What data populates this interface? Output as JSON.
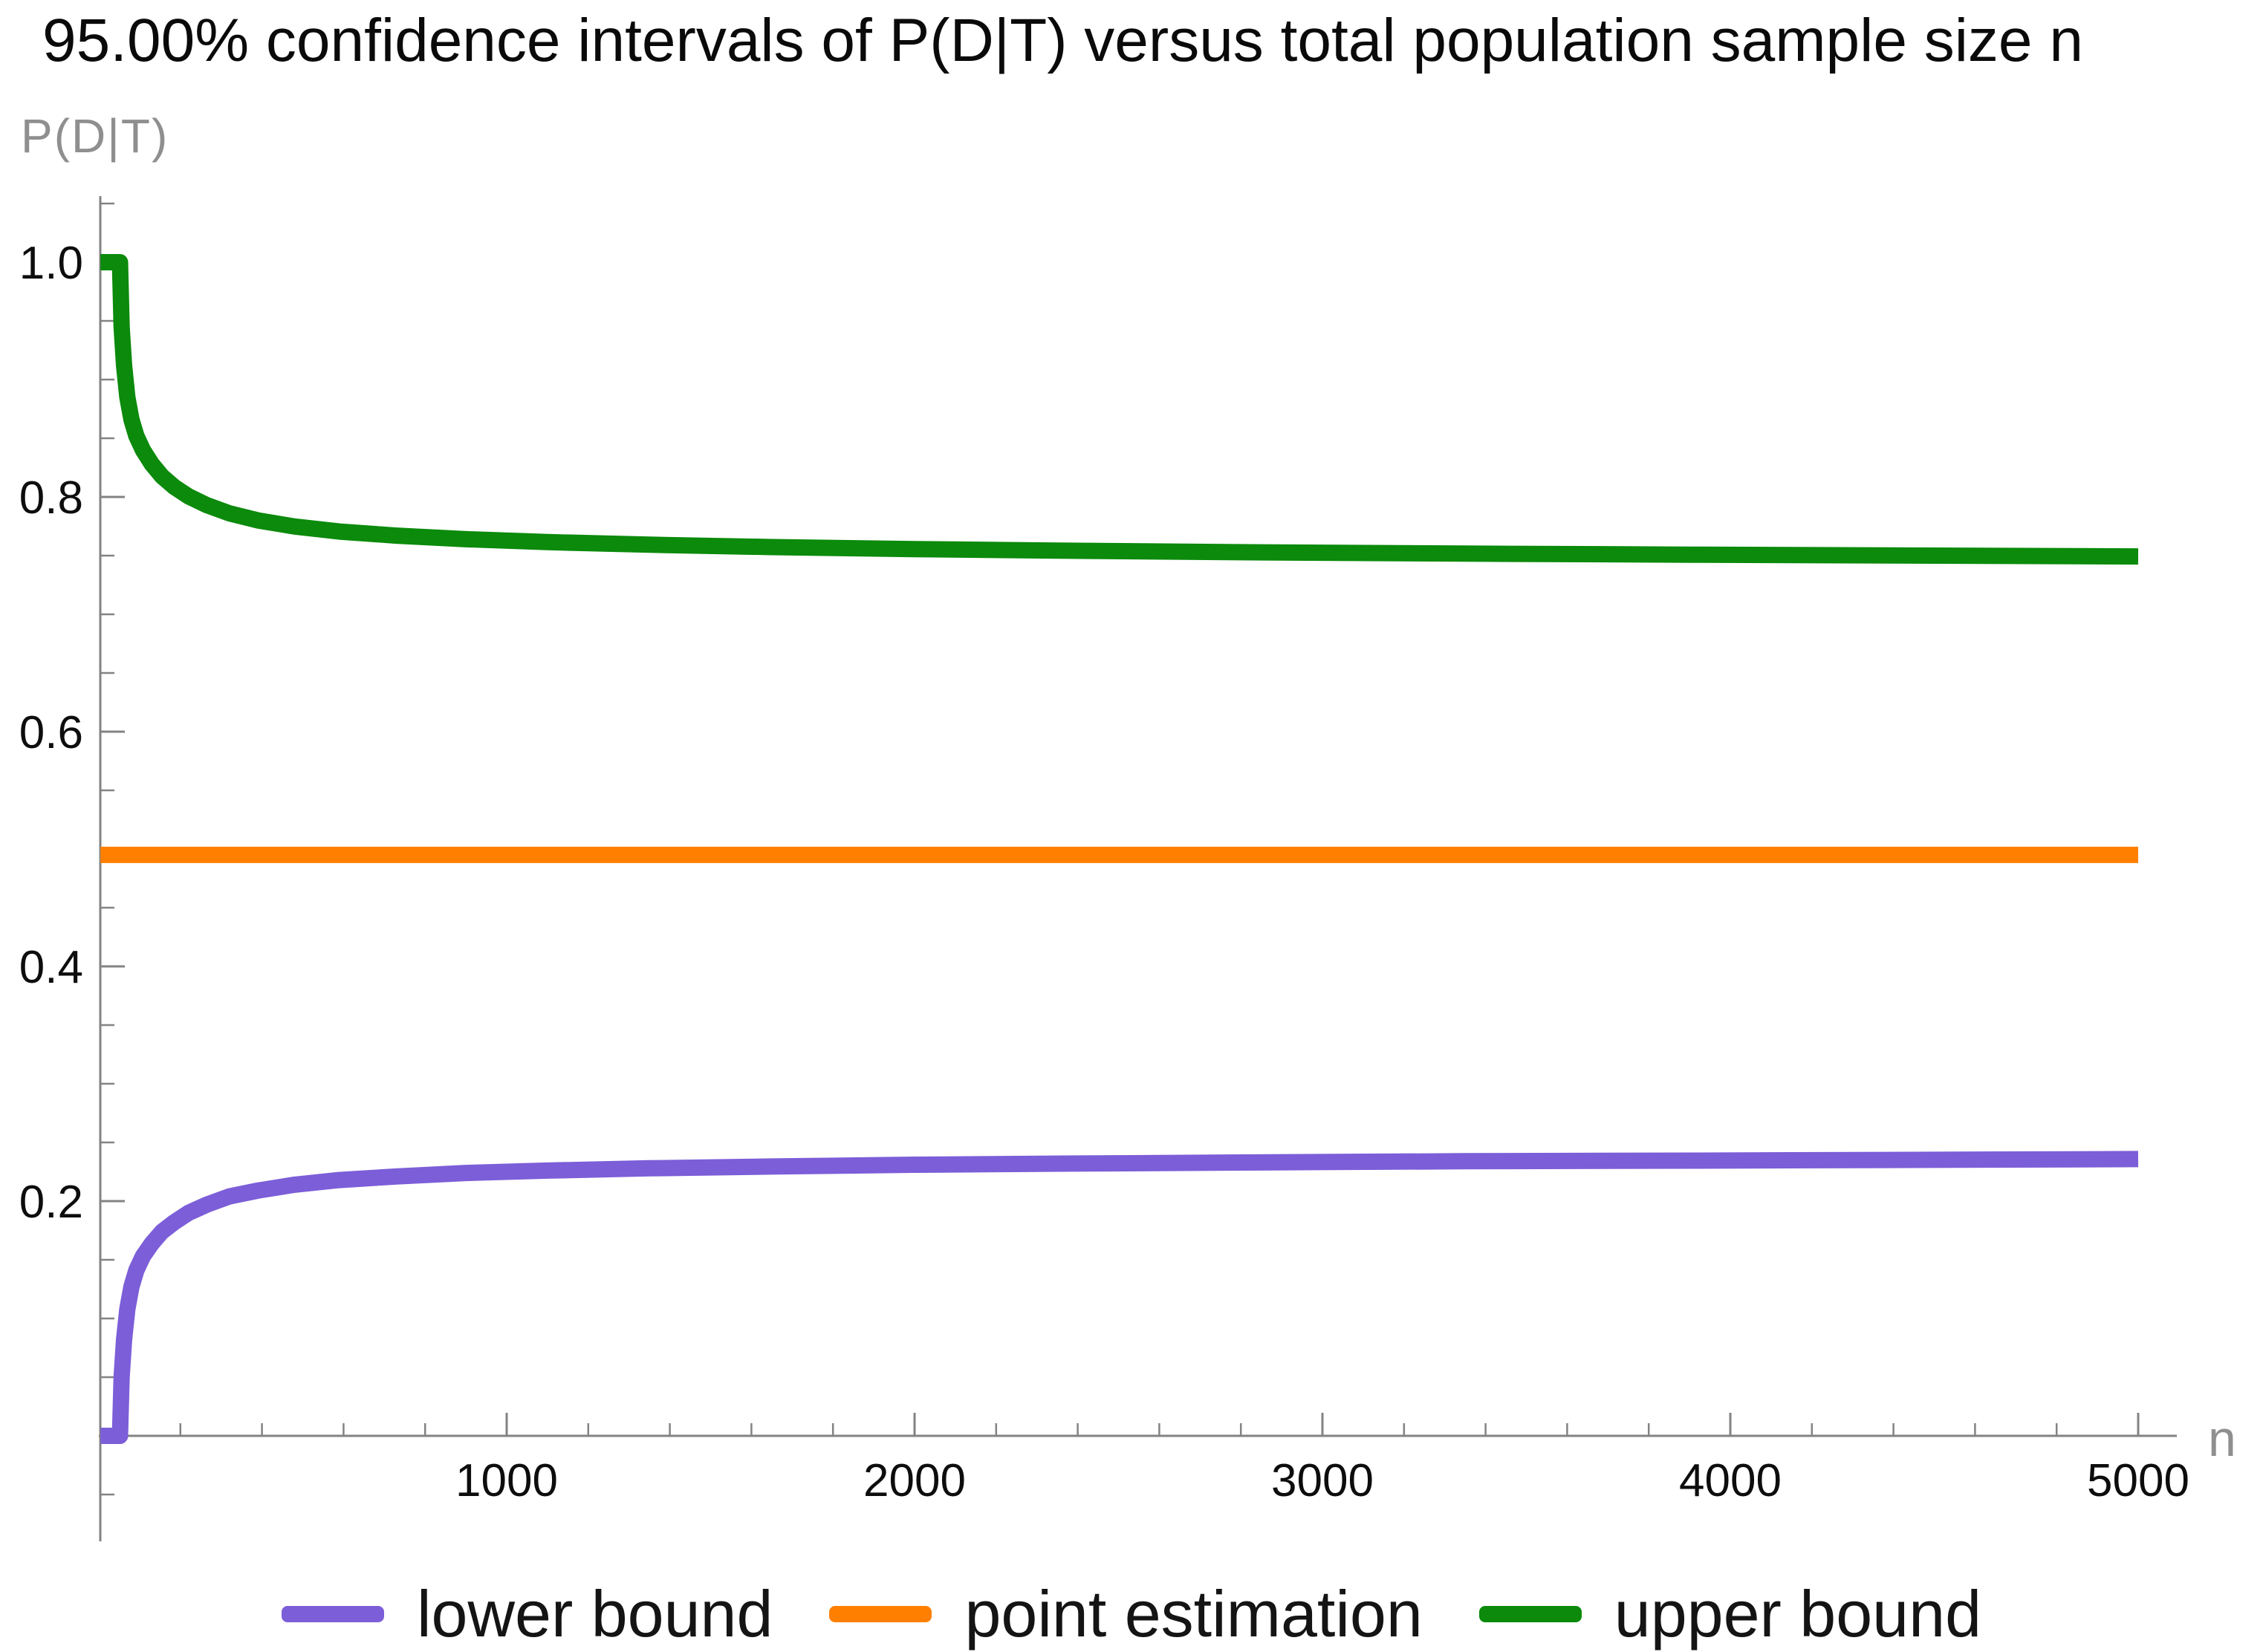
{
  "title": "95.00% confidence intervals of P(D|T) versus total population sample size n",
  "chart_data": {
    "type": "line",
    "title": "95.00% confidence intervals of P(D|T) versus total population sample size n",
    "xlabel": "n",
    "ylabel": "P(D|T)",
    "xlim": [
      0,
      5170
    ],
    "ylim": [
      -0.09,
      1.06
    ],
    "grid": false,
    "legend_position": "bottom",
    "x_axis": {
      "ticks": [
        {
          "v": 1000,
          "t": "1000"
        },
        {
          "v": 2000,
          "t": "2000"
        },
        {
          "v": 3000,
          "t": "3000"
        },
        {
          "v": 4000,
          "t": "4000"
        },
        {
          "v": 5000,
          "t": "5000"
        }
      ],
      "minor_step": 200,
      "minor_min": 200,
      "minor_max": 5000
    },
    "y_axis": {
      "ticks": [
        {
          "v": 0.2,
          "t": "0.2"
        },
        {
          "v": 0.4,
          "t": "0.4"
        },
        {
          "v": 0.6,
          "t": "0.6"
        },
        {
          "v": 0.8,
          "t": "0.8"
        },
        {
          "v": 1.0,
          "t": "1.0"
        }
      ],
      "minor_step": 0.05,
      "minor_min": -0.05,
      "minor_max": 1.05
    },
    "series": [
      {
        "name": "lower bound",
        "color": "#7c5ed8",
        "points": [
          [
            4,
            0
          ],
          [
            52,
            0
          ],
          [
            56,
            0.05
          ],
          [
            62,
            0.082
          ],
          [
            70,
            0.108
          ],
          [
            80,
            0.127
          ],
          [
            92,
            0.141
          ],
          [
            108,
            0.153
          ],
          [
            130,
            0.164
          ],
          [
            155,
            0.174
          ],
          [
            185,
            0.182
          ],
          [
            220,
            0.19
          ],
          [
            265,
            0.197
          ],
          [
            320,
            0.204
          ],
          [
            390,
            0.209
          ],
          [
            480,
            0.214
          ],
          [
            590,
            0.218
          ],
          [
            730,
            0.221
          ],
          [
            900,
            0.224
          ],
          [
            1100,
            0.226
          ],
          [
            1350,
            0.228
          ],
          [
            1650,
            0.2295
          ],
          [
            2000,
            0.231
          ],
          [
            2400,
            0.232
          ],
          [
            2850,
            0.233
          ],
          [
            3350,
            0.234
          ],
          [
            3900,
            0.2345
          ],
          [
            4500,
            0.2352
          ],
          [
            5000,
            0.2358
          ]
        ]
      },
      {
        "name": "point estimation",
        "color": "#ff8000",
        "points": [
          [
            4,
            0.495
          ],
          [
            5000,
            0.495
          ]
        ]
      },
      {
        "name": "upper bound",
        "color": "#0b8a0b",
        "points": [
          [
            4,
            1.0
          ],
          [
            52,
            1.0
          ],
          [
            56,
            0.945
          ],
          [
            62,
            0.912
          ],
          [
            70,
            0.885
          ],
          [
            80,
            0.866
          ],
          [
            92,
            0.852
          ],
          [
            108,
            0.84
          ],
          [
            130,
            0.828
          ],
          [
            155,
            0.8175
          ],
          [
            185,
            0.8085
          ],
          [
            220,
            0.8005
          ],
          [
            265,
            0.793
          ],
          [
            320,
            0.786
          ],
          [
            390,
            0.78
          ],
          [
            480,
            0.7748
          ],
          [
            590,
            0.7705
          ],
          [
            730,
            0.767
          ],
          [
            900,
            0.764
          ],
          [
            1100,
            0.7615
          ],
          [
            1350,
            0.7593
          ],
          [
            1650,
            0.7573
          ],
          [
            2000,
            0.7556
          ],
          [
            2400,
            0.7541
          ],
          [
            2850,
            0.7528
          ],
          [
            3350,
            0.7517
          ],
          [
            3900,
            0.7508
          ],
          [
            4500,
            0.75
          ],
          [
            5000,
            0.7493
          ]
        ]
      }
    ]
  }
}
